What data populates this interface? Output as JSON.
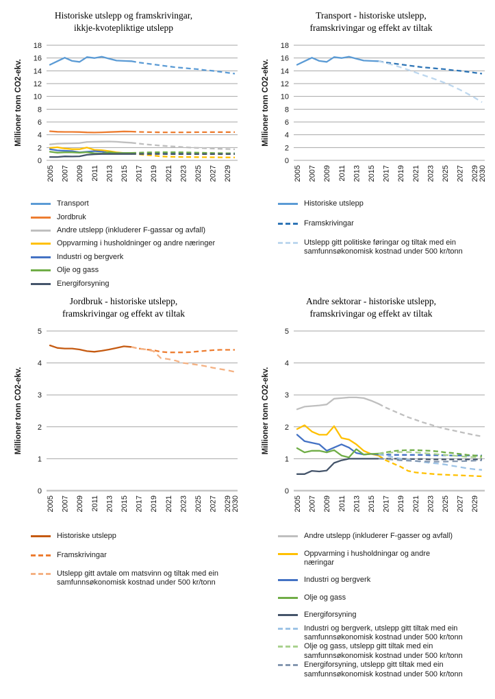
{
  "page": {
    "background": "#FFFFFF"
  },
  "chart_data": [
    {
      "id": "ikkje-kvotepliktige",
      "type": "line",
      "title": [
        "Historiske utslepp og framskrivingar,",
        "ikkje-kvotepliktige utslepp"
      ],
      "ylabel": "Millioner tonn CO2-ekv.",
      "ylim": [
        0,
        18
      ],
      "ytick_step": 2,
      "x_range": [
        2005,
        2030
      ],
      "hist_start": 2005,
      "proj_start": 2016,
      "x_ticks": [
        2005,
        2007,
        2009,
        2011,
        2013,
        2015,
        2017,
        2019,
        2021,
        2023,
        2025,
        2027,
        2029
      ],
      "grid": true,
      "legend_position": "bottom-left",
      "series": [
        {
          "name": "Transport",
          "color": "#5B9BD5",
          "hist": [
            14.95,
            15.5,
            16.05,
            15.55,
            15.4,
            16.15,
            16.0,
            16.2,
            15.9,
            15.6,
            15.55,
            15.5
          ],
          "proj": [
            15.5,
            15.3,
            15.15,
            15.0,
            14.85,
            14.7,
            14.55,
            14.45,
            14.35,
            14.25,
            14.1,
            14.0,
            13.85,
            13.7,
            13.55
          ]
        },
        {
          "name": "Jordbruk",
          "color": "#ED7D31",
          "hist": [
            4.55,
            4.47,
            4.45,
            4.45,
            4.42,
            4.37,
            4.35,
            4.38,
            4.42,
            4.47,
            4.52,
            4.5
          ],
          "proj": [
            4.5,
            4.45,
            4.42,
            4.4,
            4.38,
            4.38,
            4.38,
            4.38,
            4.39,
            4.4,
            4.4,
            4.41,
            4.41,
            4.41,
            4.41
          ]
        },
        {
          "name": "Andre utslepp",
          "color": "#BFBFBF",
          "hist": [
            2.5,
            2.6,
            2.65,
            2.67,
            2.7,
            2.88,
            2.9,
            2.93,
            2.95,
            2.9,
            2.82,
            2.75
          ],
          "proj": [
            2.75,
            2.62,
            2.5,
            2.4,
            2.3,
            2.22,
            2.15,
            2.07,
            2.0,
            1.95,
            1.9,
            1.85,
            1.8,
            1.77,
            1.73
          ]
        },
        {
          "name": "Oppvarming",
          "color": "#FFC000",
          "hist": [
            1.95,
            2.05,
            1.85,
            1.75,
            1.75,
            2.0,
            1.65,
            1.6,
            1.45,
            1.25,
            1.15,
            1.1
          ],
          "proj": [
            1.1,
            0.95,
            0.85,
            0.75,
            0.62,
            0.57,
            0.55,
            0.53,
            0.51,
            0.5,
            0.49,
            0.48,
            0.47,
            0.46,
            0.45
          ]
        },
        {
          "name": "Industri og bergverk",
          "color": "#4472C4",
          "hist": [
            1.75,
            1.55,
            1.5,
            1.45,
            1.25,
            1.35,
            1.45,
            1.35,
            1.2,
            1.15,
            1.15,
            1.14
          ],
          "proj": [
            1.14,
            1.13,
            1.13,
            1.12,
            1.12,
            1.12,
            1.12,
            1.11,
            1.11,
            1.11,
            1.1,
            1.1,
            1.1,
            1.1,
            1.1
          ]
        },
        {
          "name": "Olje og gass",
          "color": "#70AD47",
          "hist": [
            1.35,
            1.2,
            1.25,
            1.25,
            1.2,
            1.27,
            1.1,
            1.05,
            1.3,
            1.15,
            1.15,
            1.16
          ],
          "proj": [
            1.16,
            1.2,
            1.24,
            1.26,
            1.27,
            1.27,
            1.26,
            1.25,
            1.23,
            1.2,
            1.18,
            1.15,
            1.12,
            1.1,
            1.08
          ]
        },
        {
          "name": "Energiforsyning",
          "color": "#44546A",
          "hist": [
            0.52,
            0.52,
            0.62,
            0.6,
            0.63,
            0.87,
            0.95,
            1.0,
            1.0,
            1.0,
            1.0,
            1.0
          ],
          "proj": [
            1.0,
            1.0,
            1.0,
            1.0,
            1.0,
            0.99,
            0.99,
            0.99,
            0.98,
            0.98,
            0.98,
            0.98,
            0.98,
            0.98,
            0.98
          ]
        }
      ],
      "legend": [
        {
          "label": [
            "Transport"
          ],
          "color": "#5B9BD5",
          "style": "solid"
        },
        {
          "label": [
            "Jordbruk"
          ],
          "color": "#ED7D31",
          "style": "solid"
        },
        {
          "label": [
            "Andre utslepp (inkluderer F-gassar og avfall)"
          ],
          "color": "#BFBFBF",
          "style": "solid"
        },
        {
          "label": [
            "Oppvarming i husholdninger og andre næringer"
          ],
          "color": "#FFC000",
          "style": "solid"
        },
        {
          "label": [
            "Industri og bergverk"
          ],
          "color": "#4472C4",
          "style": "solid"
        },
        {
          "label": [
            "Olje og gass"
          ],
          "color": "#70AD47",
          "style": "solid"
        },
        {
          "label": [
            "Energiforsyning"
          ],
          "color": "#44546A",
          "style": "solid"
        }
      ]
    },
    {
      "id": "transport",
      "type": "line",
      "title": [
        "Transport - historiske utslepp,",
        "framskrivingar og effekt av tiltak"
      ],
      "ylabel": "Millioner tonn CO2-ekv.",
      "ylim": [
        0,
        18
      ],
      "ytick_step": 2,
      "x_range": [
        2005,
        2030
      ],
      "hist_start": 2005,
      "proj_start": 2016,
      "x_ticks": [
        2005,
        2007,
        2009,
        2011,
        2013,
        2015,
        2017,
        2019,
        2021,
        2023,
        2025,
        2027,
        2029,
        2030
      ],
      "grid": true,
      "legend_position": "bottom-left",
      "series": [
        {
          "name": "Historiske utslepp",
          "color": "#5B9BD5",
          "hist": [
            14.95,
            15.5,
            16.05,
            15.55,
            15.4,
            16.15,
            16.0,
            16.2,
            15.9,
            15.6,
            15.55,
            15.5
          ],
          "proj": null
        },
        {
          "name": "Framskrivingar",
          "color": "#2E75B6",
          "hist": null,
          "proj": [
            15.5,
            15.3,
            15.15,
            15.0,
            14.85,
            14.7,
            14.55,
            14.45,
            14.35,
            14.25,
            14.1,
            14.0,
            13.85,
            13.7,
            13.55
          ]
        },
        {
          "name": "Utslepp gitt politiske føringar og tiltak",
          "color": "#BDD7EE",
          "light_dash": true,
          "hist": null,
          "proj": [
            15.5,
            15.2,
            14.9,
            14.55,
            14.15,
            13.75,
            13.35,
            12.95,
            12.55,
            12.1,
            11.6,
            11.05,
            10.45,
            9.8,
            9.1
          ]
        }
      ],
      "legend": [
        {
          "label": [
            "Historiske utslepp"
          ],
          "color": "#5B9BD5",
          "style": "solid"
        },
        {
          "label": [
            "Framskrivingar"
          ],
          "color": "#2E75B6",
          "style": "dashed"
        },
        {
          "label": [
            "Utslepp gitt politiske føringar og tiltak med ein",
            "samfunnsøkonomisk kostnad under 500 kr/tonn"
          ],
          "color": "#BDD7EE",
          "style": "dashed"
        }
      ]
    },
    {
      "id": "jordbruk",
      "type": "line",
      "title": [
        "Jordbruk - historiske utslepp,",
        "framskrivingar og effekt av tiltak"
      ],
      "ylabel": "Millioner tonn CO2-ekv.",
      "ylim": [
        0,
        5
      ],
      "ytick_step": 1,
      "x_range": [
        2005,
        2030
      ],
      "hist_start": 2005,
      "proj_start": 2016,
      "x_ticks": [
        2005,
        2007,
        2009,
        2011,
        2013,
        2015,
        2017,
        2019,
        2021,
        2023,
        2025,
        2027,
        2029,
        2030
      ],
      "grid": true,
      "legend_position": "bottom-left",
      "series": [
        {
          "name": "Historiske utslepp",
          "color": "#C55A11",
          "hist": [
            4.55,
            4.47,
            4.45,
            4.45,
            4.42,
            4.37,
            4.35,
            4.38,
            4.42,
            4.47,
            4.52,
            4.5
          ],
          "proj": null
        },
        {
          "name": "Framskrivingar",
          "color": "#ED7D31",
          "hist": null,
          "proj": [
            4.5,
            4.45,
            4.42,
            4.4,
            4.35,
            4.33,
            4.33,
            4.33,
            4.34,
            4.36,
            4.38,
            4.4,
            4.41,
            4.41,
            4.41
          ]
        },
        {
          "name": "Utslepp gitt avtale om matsvinn og tiltak",
          "color": "#F4B183",
          "light_dash": true,
          "hist": null,
          "proj": [
            4.5,
            4.45,
            4.42,
            4.37,
            4.15,
            4.12,
            4.07,
            4.0,
            3.97,
            3.94,
            3.9,
            3.85,
            3.81,
            3.77,
            3.72
          ]
        }
      ],
      "legend": [
        {
          "label": [
            "Historiske utslepp"
          ],
          "color": "#C55A11",
          "style": "solid"
        },
        {
          "label": [
            "Framskrivingar"
          ],
          "color": "#ED7D31",
          "style": "dashed"
        },
        {
          "label": [
            "Utslepp gitt avtale om matsvinn og tiltak med ein",
            "samfunnsøkonomisk kostnad under 500 kr/tonn"
          ],
          "color": "#F4B183",
          "style": "dashed"
        }
      ]
    },
    {
      "id": "andre-sektorar",
      "type": "line",
      "title": [
        "Andre sektorar - historiske utslepp,",
        "framskrivingar og effekt av tiltak"
      ],
      "ylabel": "Millioner tonn CO2-ekv.",
      "ylim": [
        0,
        5
      ],
      "ytick_step": 1,
      "x_range": [
        2005,
        2030
      ],
      "hist_start": 2005,
      "proj_start": 2016,
      "x_ticks": [
        2005,
        2007,
        2009,
        2011,
        2013,
        2015,
        2017,
        2019,
        2021,
        2023,
        2025,
        2027,
        2029
      ],
      "grid": true,
      "legend_position": "bottom-left",
      "series": [
        {
          "name": "Andre utslepp",
          "color": "#BFBFBF",
          "hist": [
            2.55,
            2.63,
            2.65,
            2.67,
            2.7,
            2.88,
            2.9,
            2.92,
            2.92,
            2.9,
            2.82,
            2.72
          ],
          "proj": [
            2.72,
            2.6,
            2.5,
            2.4,
            2.3,
            2.22,
            2.14,
            2.07,
            2.0,
            1.94,
            1.89,
            1.84,
            1.79,
            1.74,
            1.7
          ]
        },
        {
          "name": "Oppvarming i husholdningar og andre næringar",
          "color": "#FFC000",
          "hist": [
            1.93,
            2.05,
            1.85,
            1.75,
            1.75,
            2.02,
            1.65,
            1.6,
            1.45,
            1.25,
            1.15,
            1.1
          ],
          "proj": [
            1.1,
            0.95,
            0.85,
            0.75,
            0.62,
            0.57,
            0.55,
            0.53,
            0.51,
            0.5,
            0.49,
            0.48,
            0.47,
            0.46,
            0.45
          ]
        },
        {
          "name": "Industri og bergverk",
          "color": "#4472C4",
          "hist": [
            1.75,
            1.55,
            1.5,
            1.45,
            1.25,
            1.35,
            1.45,
            1.35,
            1.18,
            1.13,
            1.15,
            1.13
          ],
          "proj": [
            1.13,
            1.13,
            1.12,
            1.12,
            1.12,
            1.12,
            1.12,
            1.11,
            1.11,
            1.11,
            1.1,
            1.1,
            1.1,
            1.1,
            1.1
          ]
        },
        {
          "name": "Olje og gass",
          "color": "#70AD47",
          "hist": [
            1.33,
            1.2,
            1.25,
            1.25,
            1.2,
            1.27,
            1.1,
            1.04,
            1.3,
            1.13,
            1.15,
            1.16
          ],
          "proj": [
            1.16,
            1.2,
            1.24,
            1.26,
            1.27,
            1.27,
            1.26,
            1.25,
            1.23,
            1.2,
            1.18,
            1.15,
            1.12,
            1.1,
            1.08
          ]
        },
        {
          "name": "Energiforsyning",
          "color": "#44546A",
          "hist": [
            0.52,
            0.52,
            0.62,
            0.6,
            0.63,
            0.87,
            0.95,
            1.0,
            1.0,
            1.0,
            1.0,
            1.0
          ],
          "proj": [
            1.0,
            1.0,
            1.0,
            1.0,
            0.99,
            0.99,
            0.99,
            0.98,
            0.98,
            0.98,
            0.98,
            0.98,
            0.98,
            0.98,
            0.98
          ]
        },
        {
          "name": "Industri og bergverk tiltak",
          "color": "#9DC3E6",
          "light_dash": true,
          "hist": null,
          "proj": [
            1.13,
            1.1,
            1.05,
            1.0,
            0.97,
            0.93,
            0.9,
            0.87,
            0.85,
            0.82,
            0.78,
            0.74,
            0.7,
            0.67,
            0.65
          ]
        },
        {
          "name": "Olje og gass tiltak",
          "color": "#A9D18E",
          "light_dash": true,
          "hist": null,
          "proj": [
            1.16,
            1.18,
            1.2,
            1.21,
            1.21,
            1.2,
            1.18,
            1.16,
            1.14,
            1.12,
            1.1,
            1.08,
            1.06,
            1.05,
            1.04
          ]
        },
        {
          "name": "Energiforsyning tiltak",
          "color": "#8497B0",
          "light_dash": true,
          "hist": null,
          "proj": [
            1.0,
            0.99,
            0.97,
            0.95,
            0.94,
            0.93,
            0.92,
            0.91,
            0.91,
            0.91,
            0.92,
            0.92,
            0.93,
            0.94,
            0.95
          ]
        }
      ],
      "legend": [
        {
          "label": [
            "Andre utslepp (inkluderer F-gasser og avfall)"
          ],
          "color": "#BFBFBF",
          "style": "solid"
        },
        {
          "label": [
            "Oppvarming i husholdningar og andre",
            "næringar"
          ],
          "color": "#FFC000",
          "style": "solid"
        },
        {
          "label": [
            "Industri og bergverk"
          ],
          "color": "#4472C4",
          "style": "solid"
        },
        {
          "label": [
            "Olje og gass"
          ],
          "color": "#70AD47",
          "style": "solid"
        },
        {
          "label": [
            "Energiforsyning"
          ],
          "color": "#44546A",
          "style": "solid"
        },
        {
          "label": [
            "Industri og bergverk, utslepp gitt tiltak med ein",
            "samfunnsøkonomisk kostnad under 500 kr/tonn"
          ],
          "color": "#9DC3E6",
          "style": "dashed"
        },
        {
          "label": [
            "Olje og gass, utslepp gitt tiltak med ein",
            "samfunnsøkonomisk kostnad under 500 kr/tonn"
          ],
          "color": "#A9D18E",
          "style": "dashed"
        },
        {
          "label": [
            "Energiforsyning, utslepp gitt tiltak med ein",
            "samfunnsøkonomisk kostnad under 500 kr/tonn"
          ],
          "color": "#8497B0",
          "style": "dashed"
        }
      ]
    }
  ]
}
